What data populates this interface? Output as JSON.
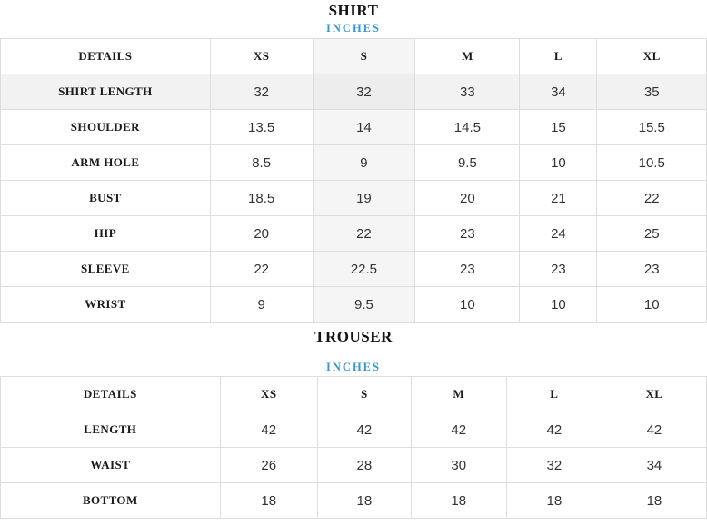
{
  "colors": {
    "accent_blue": "#3399cc",
    "highlight_column_bg": "#f5f5f5",
    "highlight_row_bg": "#f2f2f2",
    "border": "#dddddd"
  },
  "shirt_section": {
    "title": "SHIRT",
    "unit_label": "INCHES",
    "columns": [
      "DETAILS",
      "XS",
      "S",
      "M",
      "L",
      "XL"
    ],
    "rows": [
      {
        "label": "SHIRT LENGTH",
        "values": [
          "32",
          "32",
          "33",
          "34",
          "35"
        ]
      },
      {
        "label": "SHOULDER",
        "values": [
          "13.5",
          "14",
          "14.5",
          "15",
          "15.5"
        ]
      },
      {
        "label": "ARM HOLE",
        "values": [
          "8.5",
          "9",
          "9.5",
          "10",
          "10.5"
        ]
      },
      {
        "label": "BUST",
        "values": [
          "18.5",
          "19",
          "20",
          "21",
          "22"
        ]
      },
      {
        "label": "HIP",
        "values": [
          "20",
          "22",
          "23",
          "24",
          "25"
        ]
      },
      {
        "label": "SLEEVE",
        "values": [
          "22",
          "22.5",
          "23",
          "23",
          "23"
        ]
      },
      {
        "label": "WRIST",
        "values": [
          "9",
          "9.5",
          "10",
          "10",
          "10"
        ]
      }
    ],
    "highlighted_column": "S",
    "highlighted_row": "SHIRT LENGTH"
  },
  "trouser_section": {
    "title": "TROUSER",
    "unit_label": "INCHES",
    "columns": [
      "DETAILS",
      "XS",
      "S",
      "M",
      "L",
      "XL"
    ],
    "rows": [
      {
        "label": "LENGTH",
        "values": [
          "42",
          "42",
          "42",
          "42",
          "42"
        ]
      },
      {
        "label": "WAIST",
        "values": [
          "26",
          "28",
          "30",
          "32",
          "34"
        ]
      },
      {
        "label": "BOTTOM",
        "values": [
          "18",
          "18",
          "18",
          "18",
          "18"
        ]
      }
    ]
  }
}
